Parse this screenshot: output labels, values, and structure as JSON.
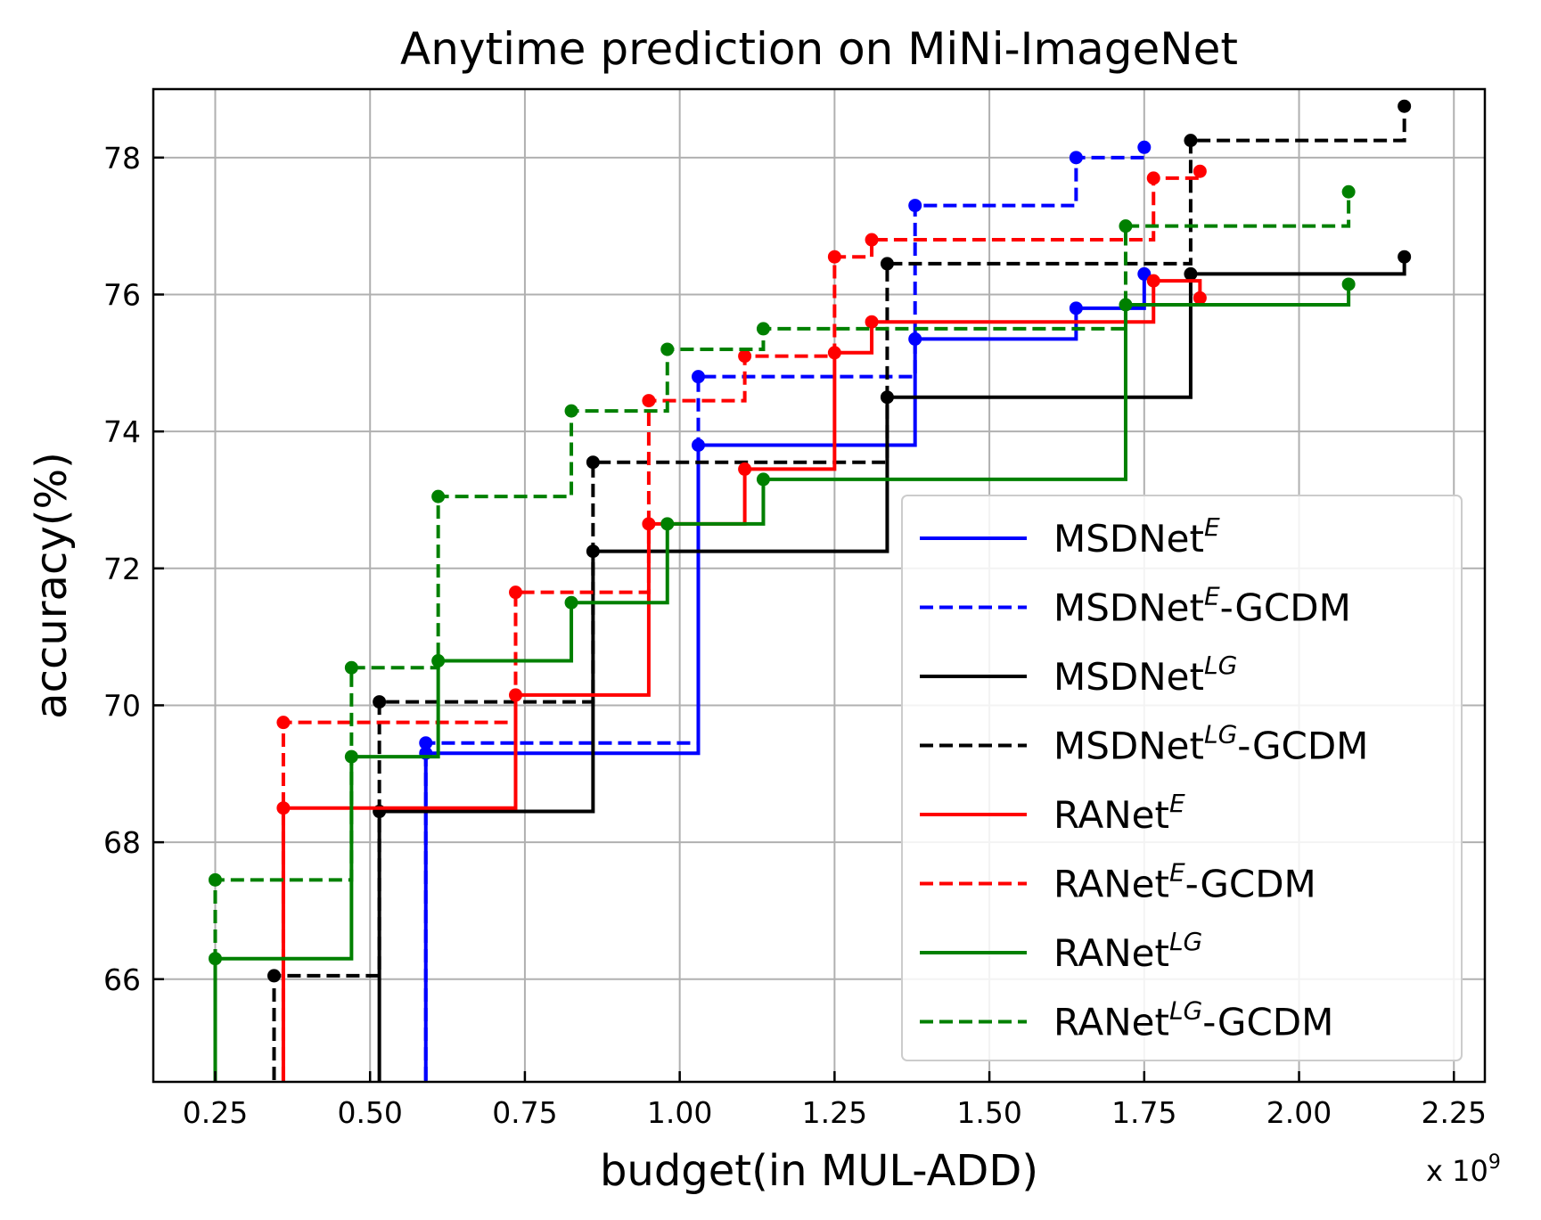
{
  "chart_data": {
    "type": "line",
    "title": "Anytime prediction on MiNi-ImageNet",
    "xlabel": "budget(in MUL-ADD)",
    "ylabel": "accuracy(%)",
    "x_multiplier_label": "x 10",
    "x_multiplier_exp": "9",
    "xlim": [
      0.15,
      2.3
    ],
    "ylim": [
      64.5,
      79.0
    ],
    "xticks": [
      0.25,
      0.5,
      0.75,
      1.0,
      1.25,
      1.5,
      1.75,
      2.0,
      2.25
    ],
    "xtick_labels": [
      "0.25",
      "0.50",
      "0.75",
      "1.00",
      "1.25",
      "1.50",
      "1.75",
      "2.00",
      "2.25"
    ],
    "yticks": [
      66,
      68,
      70,
      72,
      74,
      76,
      78
    ],
    "ytick_labels": [
      "66",
      "68",
      "70",
      "72",
      "74",
      "76",
      "78"
    ],
    "grid": true,
    "legend_position": "lower-right",
    "step_style": "post",
    "series": [
      {
        "name_base": "MSDNet",
        "name_sup": "E",
        "name_suffix": "",
        "color": "#0000ff",
        "dashed": false,
        "x": [
          0.59,
          1.03,
          1.38,
          1.64,
          1.75
        ],
        "y": [
          69.3,
          73.8,
          75.35,
          75.8,
          76.3
        ]
      },
      {
        "name_base": "MSDNet",
        "name_sup": "E",
        "name_suffix": "-GCDM",
        "color": "#0000ff",
        "dashed": true,
        "x": [
          0.59,
          1.03,
          1.38,
          1.64,
          1.75
        ],
        "y": [
          69.45,
          74.8,
          77.3,
          78.0,
          78.15
        ]
      },
      {
        "name_base": "MSDNet",
        "name_sup": "LG",
        "name_suffix": "",
        "color": "#000000",
        "dashed": false,
        "x": [
          0.515,
          0.86,
          1.335,
          1.825,
          2.17
        ],
        "y": [
          68.45,
          72.25,
          74.5,
          76.3,
          76.55
        ]
      },
      {
        "name_base": "MSDNet",
        "name_sup": "LG",
        "name_suffix": "-GCDM",
        "color": "#000000",
        "dashed": true,
        "x": [
          0.345,
          0.515,
          0.86,
          1.335,
          1.825,
          2.17
        ],
        "y": [
          66.05,
          70.05,
          73.55,
          76.45,
          78.25,
          78.75
        ]
      },
      {
        "name_base": "RANet",
        "name_sup": "E",
        "name_suffix": "",
        "color": "#ff0000",
        "dashed": false,
        "x": [
          0.36,
          0.735,
          0.95,
          1.105,
          1.25,
          1.31,
          1.765,
          1.84
        ],
        "y": [
          68.5,
          70.15,
          72.65,
          73.45,
          75.15,
          75.6,
          76.2,
          75.95
        ]
      },
      {
        "name_base": "RANet",
        "name_sup": "E",
        "name_suffix": "-GCDM",
        "color": "#ff0000",
        "dashed": true,
        "x": [
          0.36,
          0.735,
          0.95,
          1.105,
          1.25,
          1.31,
          1.765,
          1.84
        ],
        "y": [
          69.75,
          71.65,
          74.45,
          75.1,
          76.55,
          76.8,
          77.7,
          77.8
        ]
      },
      {
        "name_base": "RANet",
        "name_sup": "LG",
        "name_suffix": "",
        "color": "#008000",
        "dashed": false,
        "x": [
          0.25,
          0.47,
          0.61,
          0.825,
          0.98,
          1.135,
          1.72,
          2.08
        ],
        "y": [
          66.3,
          69.25,
          70.65,
          71.5,
          72.65,
          73.3,
          75.85,
          76.15
        ]
      },
      {
        "name_base": "RANet",
        "name_sup": "LG",
        "name_suffix": "-GCDM",
        "color": "#008000",
        "dashed": true,
        "x": [
          0.25,
          0.47,
          0.61,
          0.825,
          0.98,
          1.135,
          1.72,
          2.08
        ],
        "y": [
          67.45,
          70.55,
          73.05,
          74.3,
          75.2,
          75.5,
          77.0,
          77.5
        ]
      }
    ]
  }
}
